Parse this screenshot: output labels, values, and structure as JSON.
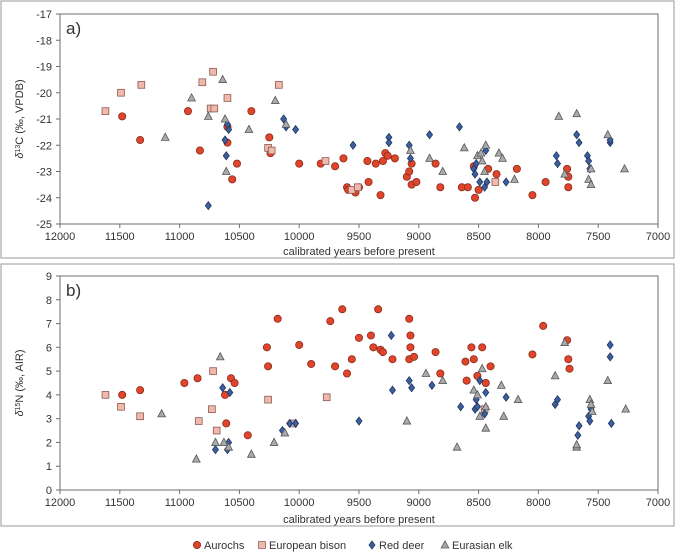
{
  "legend": [
    {
      "key": "aurochs",
      "label": "Aurochs",
      "marker": "circle",
      "fill": "#e0452c",
      "stroke": "#8a2a1a"
    },
    {
      "key": "bison",
      "label": "European bison",
      "marker": "square",
      "fill": "#f1b9ac",
      "stroke": "#8a5a50"
    },
    {
      "key": "reddeer",
      "label": "Red deer",
      "marker": "diamond",
      "fill": "#3d5f9e",
      "stroke": "#1e3560"
    },
    {
      "key": "elk",
      "label": "Eurasian elk",
      "marker": "triangle",
      "fill": "#a8aaad",
      "stroke": "#555555"
    }
  ],
  "chart_data": [
    {
      "type": "scatter",
      "panel_label": "a)",
      "xlabel": "calibrated years before present",
      "ylabel": "δ13C (‰, VPDB)",
      "ylabel_parts": {
        "delta": "δ",
        "sup": "13",
        "rest": "C (‰, VPDB)"
      },
      "xlim": [
        12000,
        7000
      ],
      "ylim": [
        -25,
        -17
      ],
      "xticks": [
        12000,
        11500,
        11000,
        10500,
        10000,
        9500,
        9000,
        8500,
        8000,
        7500,
        7000
      ],
      "yticks": [
        -25,
        -24,
        -23,
        -22,
        -21,
        -20,
        -19,
        -18,
        -17
      ],
      "grid": false,
      "series": [
        {
          "key": "aurochs",
          "name": "Aurochs",
          "points": [
            [
              11480,
              -20.9
            ],
            [
              11330,
              -21.8
            ],
            [
              10930,
              -20.7
            ],
            [
              10830,
              -22.2
            ],
            [
              10600,
              -21.9
            ],
            [
              10600,
              -21.3
            ],
            [
              10560,
              -23.3
            ],
            [
              10520,
              -22.7
            ],
            [
              10400,
              -20.7
            ],
            [
              10250,
              -21.7
            ],
            [
              10240,
              -22.3
            ],
            [
              10000,
              -22.7
            ],
            [
              9820,
              -22.7
            ],
            [
              9700,
              -22.8
            ],
            [
              9630,
              -22.5
            ],
            [
              9600,
              -23.6
            ],
            [
              9590,
              -23.7
            ],
            [
              9530,
              -23.8
            ],
            [
              9500,
              -23.6
            ],
            [
              9430,
              -22.6
            ],
            [
              9420,
              -23.4
            ],
            [
              9360,
              -22.7
            ],
            [
              9320,
              -23.9
            ],
            [
              9300,
              -22.6
            ],
            [
              9280,
              -22.3
            ],
            [
              9260,
              -22.4
            ],
            [
              9200,
              -22.5
            ],
            [
              9100,
              -23.2
            ],
            [
              9080,
              -23.0
            ],
            [
              9060,
              -22.7
            ],
            [
              9060,
              -23.5
            ],
            [
              9020,
              -23.4
            ],
            [
              8860,
              -22.7
            ],
            [
              8820,
              -23.6
            ],
            [
              8640,
              -23.6
            ],
            [
              8590,
              -23.6
            ],
            [
              8540,
              -22.8
            ],
            [
              8530,
              -24.0
            ],
            [
              8500,
              -23.7
            ],
            [
              8420,
              -22.9
            ],
            [
              8350,
              -23.1
            ],
            [
              8180,
              -22.9
            ],
            [
              8050,
              -23.9
            ],
            [
              7940,
              -23.4
            ],
            [
              7760,
              -22.9
            ],
            [
              7750,
              -23.6
            ],
            [
              7750,
              -23.2
            ]
          ]
        },
        {
          "key": "bison",
          "name": "European bison",
          "points": [
            [
              11620,
              -20.7
            ],
            [
              11490,
              -20.0
            ],
            [
              11320,
              -19.7
            ],
            [
              10810,
              -19.6
            ],
            [
              10740,
              -20.6
            ],
            [
              10720,
              -19.2
            ],
            [
              10710,
              -20.6
            ],
            [
              10600,
              -20.2
            ],
            [
              10260,
              -22.1
            ],
            [
              10230,
              -22.2
            ],
            [
              10170,
              -19.7
            ],
            [
              9780,
              -22.6
            ],
            [
              9560,
              -23.7
            ],
            [
              9510,
              -23.6
            ],
            [
              8360,
              -23.4
            ]
          ]
        },
        {
          "key": "reddeer",
          "name": "Red deer",
          "points": [
            [
              10760,
              -24.3
            ],
            [
              10620,
              -21.8
            ],
            [
              10610,
              -22.4
            ],
            [
              10590,
              -21.4
            ],
            [
              10600,
              -21.2
            ],
            [
              10130,
              -21.0
            ],
            [
              10110,
              -21.3
            ],
            [
              10030,
              -21.4
            ],
            [
              9550,
              -22.0
            ],
            [
              9250,
              -21.7
            ],
            [
              9250,
              -21.9
            ],
            [
              9080,
              -22.0
            ],
            [
              9070,
              -22.5
            ],
            [
              8910,
              -21.6
            ],
            [
              8660,
              -21.3
            ],
            [
              8540,
              -22.9
            ],
            [
              8530,
              -23.1
            ],
            [
              8520,
              -22.7
            ],
            [
              8490,
              -23.4
            ],
            [
              8450,
              -23.6
            ],
            [
              8440,
              -22.2
            ],
            [
              8430,
              -23.4
            ],
            [
              8270,
              -23.4
            ],
            [
              7850,
              -22.4
            ],
            [
              7840,
              -22.7
            ],
            [
              7680,
              -21.6
            ],
            [
              7660,
              -21.9
            ],
            [
              7590,
              -22.4
            ],
            [
              7580,
              -22.6
            ],
            [
              7570,
              -22.9
            ],
            [
              7400,
              -21.9
            ],
            [
              7400,
              -21.8
            ]
          ]
        },
        {
          "key": "elk",
          "name": "Eurasian elk",
          "points": [
            [
              11120,
              -21.7
            ],
            [
              10900,
              -20.2
            ],
            [
              10760,
              -20.9
            ],
            [
              10640,
              -19.5
            ],
            [
              10620,
              -21.0
            ],
            [
              10610,
              -23.0
            ],
            [
              10420,
              -21.4
            ],
            [
              10200,
              -20.3
            ],
            [
              10110,
              -21.2
            ],
            [
              9070,
              -22.2
            ],
            [
              8910,
              -22.5
            ],
            [
              8800,
              -23.0
            ],
            [
              8620,
              -22.1
            ],
            [
              8510,
              -22.4
            ],
            [
              8480,
              -22.3
            ],
            [
              8470,
              -22.6
            ],
            [
              8450,
              -23.0
            ],
            [
              8440,
              -22.0
            ],
            [
              8330,
              -22.3
            ],
            [
              8300,
              -22.5
            ],
            [
              8200,
              -23.3
            ],
            [
              7830,
              -20.9
            ],
            [
              7780,
              -23.1
            ],
            [
              7680,
              -20.8
            ],
            [
              7580,
              -23.3
            ],
            [
              7560,
              -23.5
            ],
            [
              7560,
              -22.9
            ],
            [
              7420,
              -21.6
            ],
            [
              7280,
              -22.9
            ]
          ]
        }
      ]
    },
    {
      "type": "scatter",
      "panel_label": "b)",
      "xlabel": "calibrated years before present",
      "ylabel": "δ15N (‰, AIR)",
      "ylabel_parts": {
        "delta": "δ",
        "sup": "15",
        "rest": "N (‰, AIR)"
      },
      "xlim": [
        12000,
        7000
      ],
      "ylim": [
        0,
        9
      ],
      "xticks": [
        12000,
        11500,
        11000,
        10500,
        10000,
        9500,
        9000,
        8500,
        8000,
        7500,
        7000
      ],
      "yticks": [
        0,
        1,
        2,
        3,
        4,
        5,
        6,
        7,
        8,
        9
      ],
      "grid": false,
      "series": [
        {
          "key": "aurochs",
          "name": "Aurochs",
          "points": [
            [
              11480,
              4.0
            ],
            [
              11330,
              4.2
            ],
            [
              10960,
              4.5
            ],
            [
              10850,
              4.7
            ],
            [
              10620,
              4.0
            ],
            [
              10610,
              2.8
            ],
            [
              10570,
              4.7
            ],
            [
              10540,
              4.5
            ],
            [
              10430,
              2.3
            ],
            [
              10270,
              6.0
            ],
            [
              10260,
              5.2
            ],
            [
              10180,
              7.2
            ],
            [
              10000,
              6.1
            ],
            [
              9900,
              5.3
            ],
            [
              9740,
              7.1
            ],
            [
              9700,
              5.2
            ],
            [
              9640,
              7.6
            ],
            [
              9600,
              4.9
            ],
            [
              9560,
              5.5
            ],
            [
              9500,
              6.4
            ],
            [
              9400,
              6.5
            ],
            [
              9380,
              6.0
            ],
            [
              9340,
              7.6
            ],
            [
              9320,
              5.9
            ],
            [
              9300,
              5.8
            ],
            [
              9220,
              5.5
            ],
            [
              9080,
              7.2
            ],
            [
              9080,
              5.5
            ],
            [
              9070,
              6.5
            ],
            [
              9070,
              6.0
            ],
            [
              9040,
              5.6
            ],
            [
              8860,
              5.8
            ],
            [
              8820,
              4.9
            ],
            [
              8610,
              5.4
            ],
            [
              8600,
              4.6
            ],
            [
              8560,
              6.0
            ],
            [
              8540,
              5.5
            ],
            [
              8510,
              4.8
            ],
            [
              8470,
              6.0
            ],
            [
              8440,
              4.5
            ],
            [
              8400,
              5.2
            ],
            [
              8050,
              5.7
            ],
            [
              7960,
              6.9
            ],
            [
              7760,
              6.3
            ],
            [
              7750,
              5.5
            ],
            [
              7740,
              5.1
            ]
          ]
        },
        {
          "key": "bison",
          "name": "European bison",
          "points": [
            [
              11620,
              4.0
            ],
            [
              11490,
              3.5
            ],
            [
              11330,
              3.1
            ],
            [
              10840,
              2.9
            ],
            [
              10730,
              3.4
            ],
            [
              10720,
              5.0
            ],
            [
              10690,
              2.5
            ],
            [
              10260,
              3.8
            ],
            [
              10050,
              2.8
            ],
            [
              9770,
              3.9
            ],
            [
              8450,
              3.4
            ]
          ]
        },
        {
          "key": "reddeer",
          "name": "Red deer",
          "points": [
            [
              10700,
              1.7
            ],
            [
              10640,
              4.3
            ],
            [
              10600,
              1.7
            ],
            [
              10590,
              2.0
            ],
            [
              10580,
              4.1
            ],
            [
              10140,
              2.5
            ],
            [
              10080,
              2.8
            ],
            [
              10030,
              2.8
            ],
            [
              9500,
              2.9
            ],
            [
              9230,
              6.5
            ],
            [
              9220,
              4.2
            ],
            [
              9080,
              4.6
            ],
            [
              9060,
              4.3
            ],
            [
              8890,
              4.4
            ],
            [
              8650,
              3.5
            ],
            [
              8530,
              3.4
            ],
            [
              8520,
              3.8
            ],
            [
              8510,
              3.5
            ],
            [
              8490,
              4.6
            ],
            [
              8450,
              3.2
            ],
            [
              8440,
              4.1
            ],
            [
              8270,
              3.9
            ],
            [
              7860,
              3.6
            ],
            [
              7840,
              3.8
            ],
            [
              7670,
              2.3
            ],
            [
              7660,
              2.7
            ],
            [
              7580,
              3.1
            ],
            [
              7570,
              2.9
            ],
            [
              7560,
              3.4
            ],
            [
              7400,
              6.1
            ],
            [
              7400,
              5.6
            ],
            [
              7390,
              2.8
            ]
          ]
        },
        {
          "key": "elk",
          "name": "Eurasian elk",
          "points": [
            [
              11150,
              3.2
            ],
            [
              10860,
              1.3
            ],
            [
              10700,
              2.0
            ],
            [
              10660,
              5.6
            ],
            [
              10630,
              2.0
            ],
            [
              10590,
              1.8
            ],
            [
              10400,
              1.5
            ],
            [
              10210,
              2.0
            ],
            [
              10120,
              2.4
            ],
            [
              9100,
              2.9
            ],
            [
              8940,
              4.9
            ],
            [
              8800,
              4.6
            ],
            [
              8680,
              1.8
            ],
            [
              8540,
              4.2
            ],
            [
              8510,
              4.0
            ],
            [
              8490,
              3.1
            ],
            [
              8470,
              5.1
            ],
            [
              8440,
              2.6
            ],
            [
              8440,
              3.5
            ],
            [
              8310,
              4.4
            ],
            [
              8290,
              3.1
            ],
            [
              8170,
              3.8
            ],
            [
              7860,
              4.8
            ],
            [
              7780,
              6.2
            ],
            [
              7680,
              1.8
            ],
            [
              7680,
              1.9
            ],
            [
              7570,
              3.8
            ],
            [
              7560,
              3.6
            ],
            [
              7550,
              3.3
            ],
            [
              7420,
              4.6
            ],
            [
              7270,
              3.4
            ]
          ]
        }
      ]
    }
  ]
}
